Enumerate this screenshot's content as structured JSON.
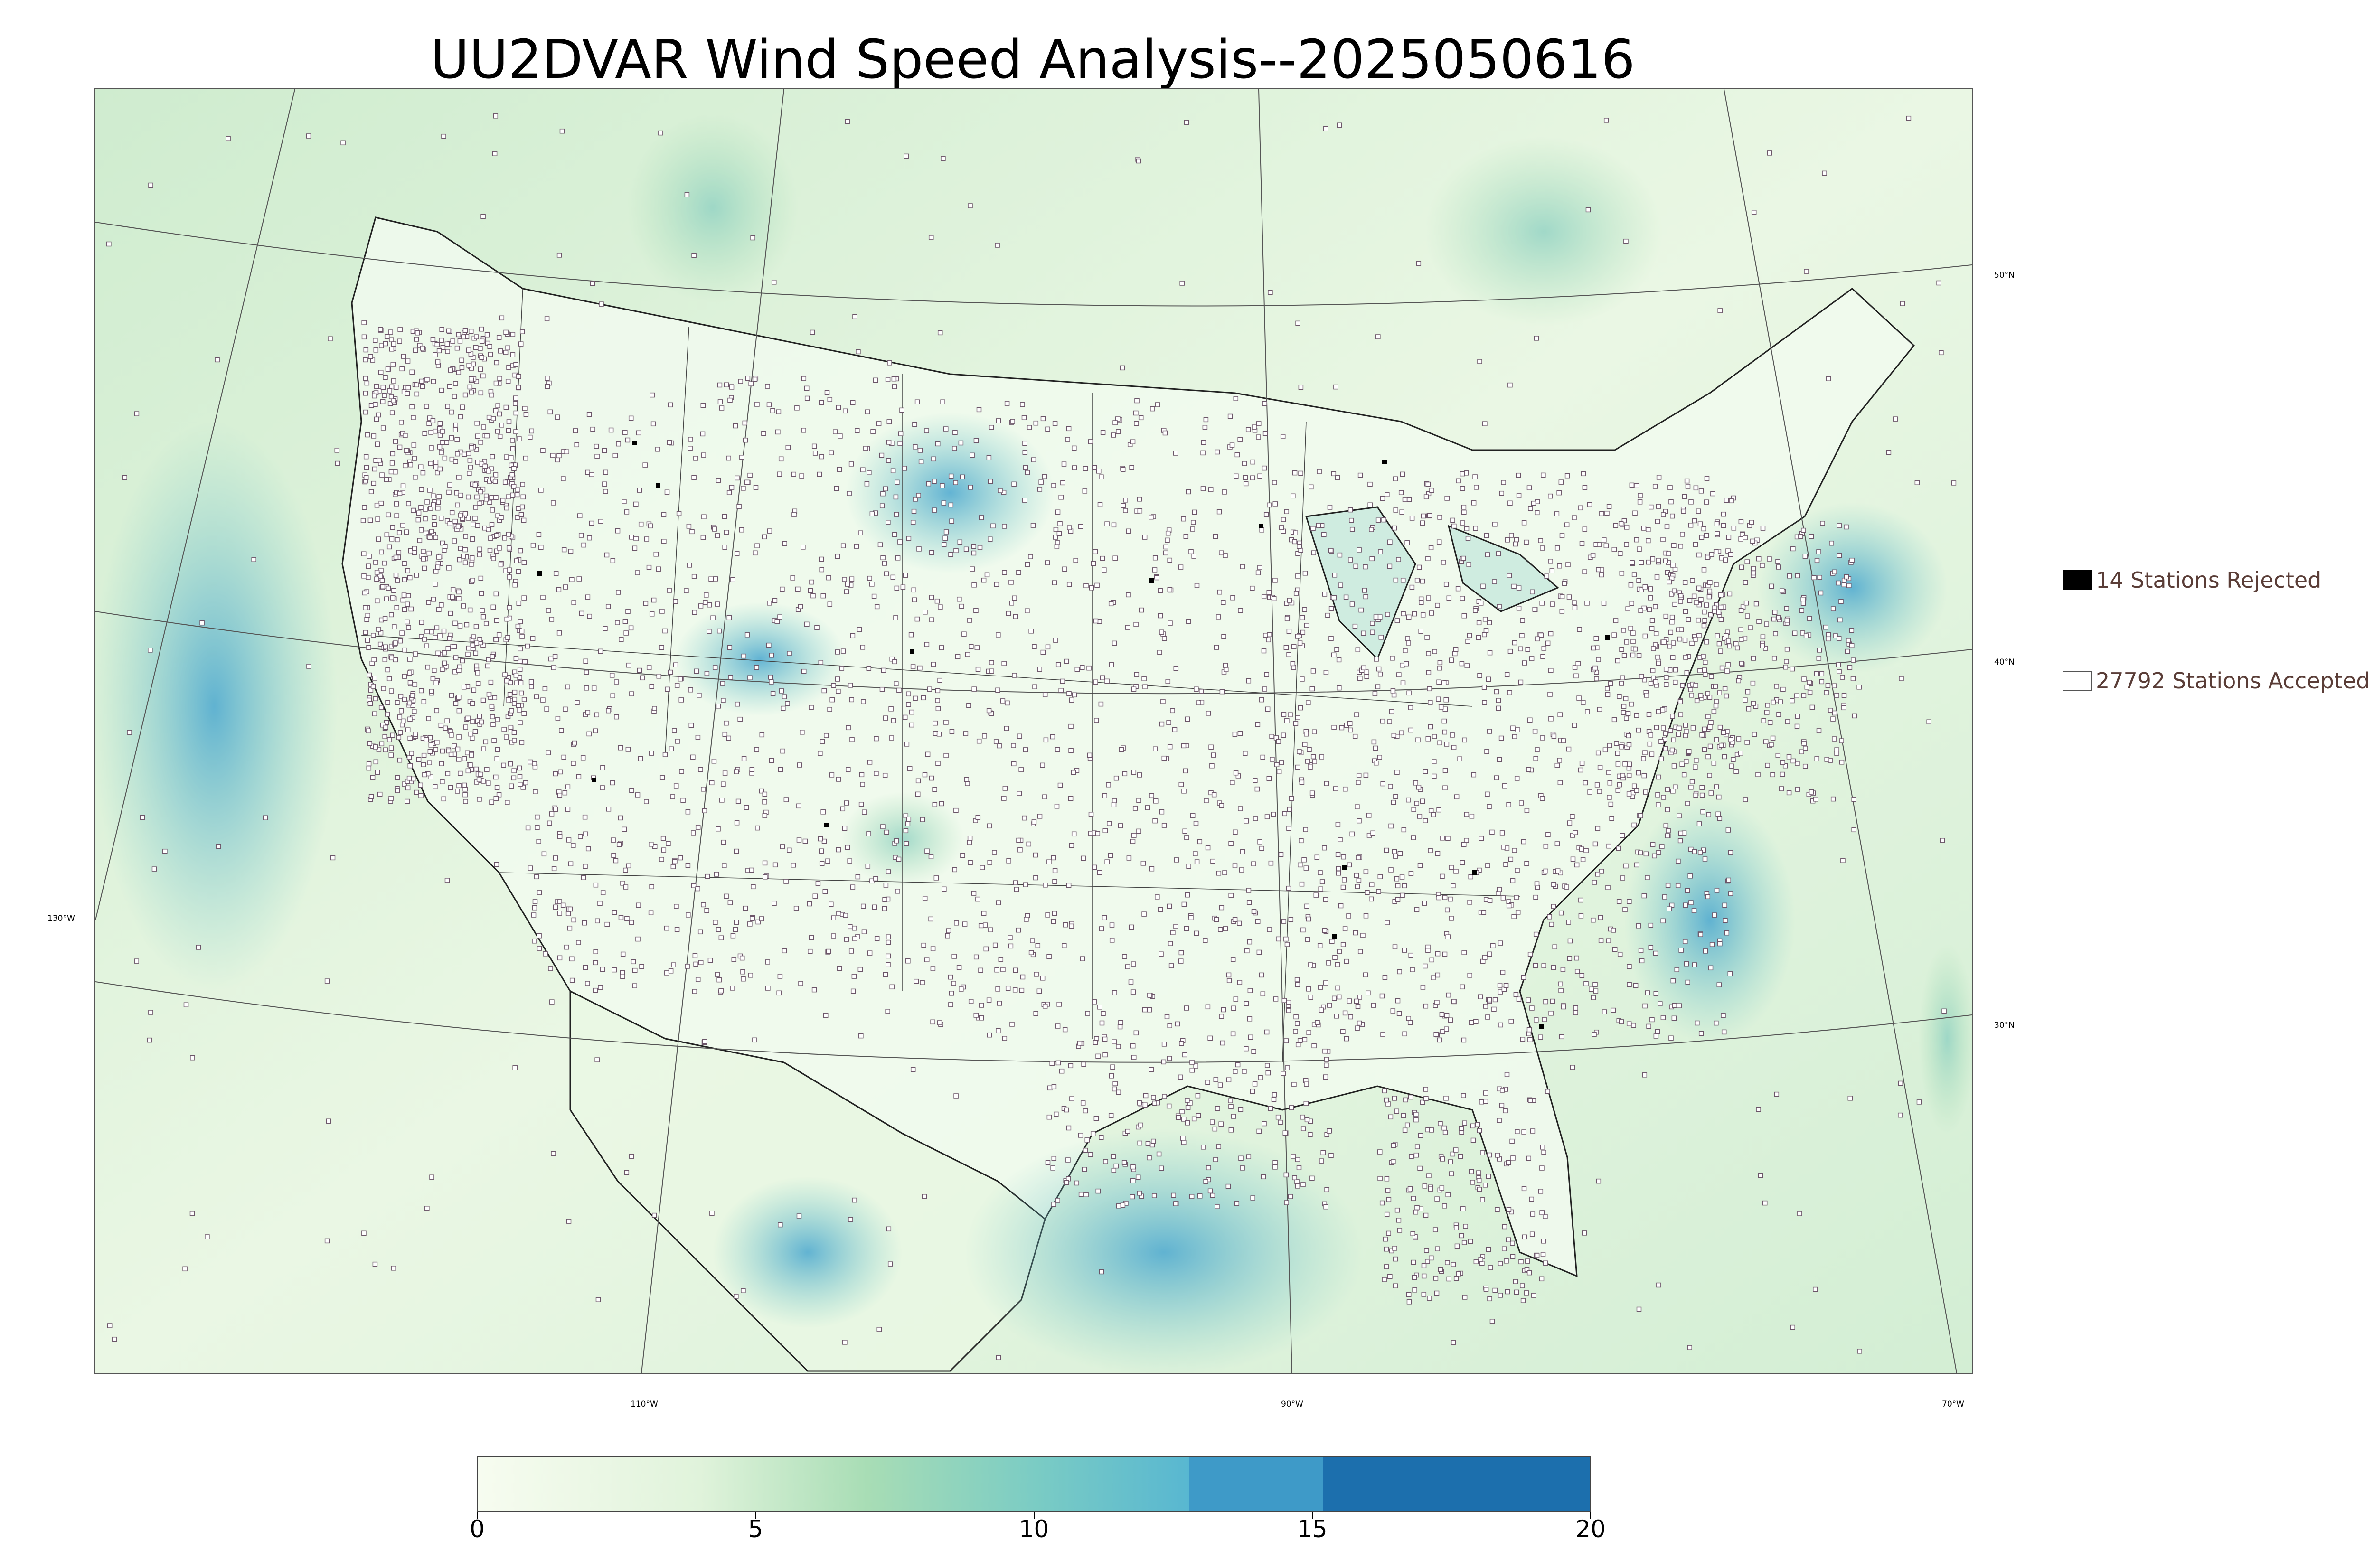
{
  "title": "UU2DVAR Wind Speed Analysis--2025050616",
  "map": {
    "lat_labels": [
      "50°N",
      "40°N",
      "30°N"
    ],
    "lon_labels": [
      "130°W",
      "110°W",
      "90°W",
      "70°W"
    ]
  },
  "legend": {
    "rejected": {
      "count": 14,
      "label": "14 Stations Rejected",
      "swatch_color": "#000000"
    },
    "accepted": {
      "count": 27792,
      "label": "27792 Stations Accepted",
      "swatch_color": "#ffffff"
    }
  },
  "colorbar": {
    "min": 0,
    "max": 20,
    "tick_labels": [
      "0",
      "5",
      "10",
      "15",
      "20"
    ],
    "tick_values": [
      0,
      5,
      10,
      15,
      20
    ],
    "colormap": "GnBu",
    "continuous_until": 12.8,
    "stops": [
      {
        "value": 0,
        "color": "#f7fcf0"
      },
      {
        "value": 4,
        "color": "#e0f3db"
      },
      {
        "value": 7,
        "color": "#a8ddb5"
      },
      {
        "value": 10,
        "color": "#7bccc4"
      },
      {
        "value": 12.8,
        "color": "#58b7d1"
      }
    ],
    "bands": [
      {
        "from": 12.8,
        "to": 15.2,
        "color": "#3e9ac8"
      },
      {
        "from": 15.2,
        "to": 20,
        "color": "#1c6fad"
      }
    ]
  },
  "colors": {
    "land_base": "#eef8e8",
    "ocean_base": "#c9ead0",
    "high_wind": "#4aa7cf",
    "station_marker": "#6b5568",
    "boundary": "#333333"
  }
}
